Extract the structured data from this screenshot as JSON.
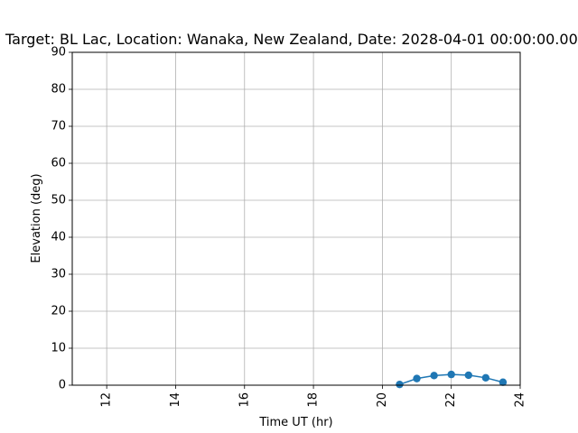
{
  "chart_data": {
    "type": "line",
    "title": "Target: BL Lac,  Location: Wanaka, New Zealand, Date: 2028-04-01 00:00:00.000",
    "xlabel": "Time UT (hr)",
    "ylabel": "Elevation (deg)",
    "xlim": [
      11,
      24
    ],
    "ylim": [
      0,
      90
    ],
    "xticks": [
      12,
      14,
      16,
      18,
      20,
      22,
      24
    ],
    "yticks": [
      0,
      10,
      20,
      30,
      40,
      50,
      60,
      70,
      80,
      90
    ],
    "grid": true,
    "x_tick_rotation": "vertical",
    "series": [
      {
        "color": "#1f77b4",
        "marker": "circle",
        "x": [
          20.5,
          21.0,
          21.5,
          22.0,
          22.5,
          23.0,
          23.5
        ],
        "y": [
          0.2,
          1.8,
          2.6,
          2.9,
          2.7,
          2.0,
          0.8
        ]
      }
    ]
  }
}
